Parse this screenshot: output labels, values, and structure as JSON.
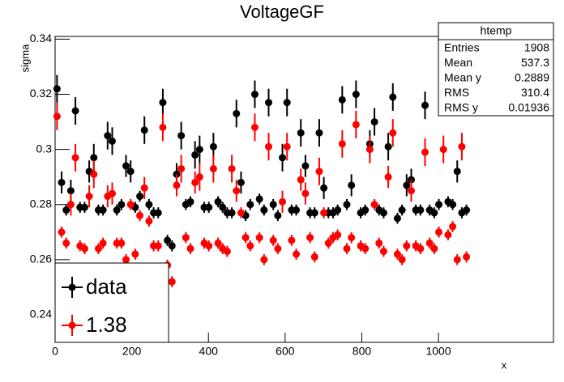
{
  "chart_data": {
    "type": "scatter",
    "title": "VoltageGF",
    "x_label": "x",
    "y_label": "sigma",
    "xlim": [
      0,
      1300
    ],
    "ylim": [
      0.23,
      0.341
    ],
    "xticks": [
      0,
      200,
      400,
      600,
      800,
      1000
    ],
    "yticks": [
      0.24,
      0.26,
      0.28,
      0.3,
      0.32,
      0.34
    ],
    "x": [
      5,
      17,
      29,
      41,
      53,
      65,
      77,
      89,
      101,
      113,
      125,
      137,
      149,
      161,
      173,
      185,
      197,
      209,
      221,
      233,
      245,
      257,
      269,
      281,
      293,
      305,
      317,
      329,
      341,
      353,
      365,
      377,
      389,
      401,
      413,
      425,
      437,
      449,
      461,
      473,
      485,
      497,
      509,
      521,
      533,
      545,
      557,
      569,
      581,
      593,
      605,
      617,
      629,
      641,
      653,
      665,
      677,
      689,
      701,
      713,
      725,
      737,
      749,
      761,
      773,
      785,
      797,
      809,
      821,
      833,
      845,
      857,
      869,
      881,
      893,
      905,
      917,
      929,
      941,
      953,
      965,
      977,
      989,
      1001,
      1013,
      1025,
      1037,
      1049,
      1061,
      1073
    ],
    "series": [
      {
        "name": "data",
        "color": "#000000",
        "values": [
          0.322,
          0.288,
          0.278,
          0.285,
          0.314,
          0.279,
          0.279,
          0.292,
          0.297,
          0.278,
          0.278,
          0.305,
          0.303,
          0.278,
          0.28,
          0.294,
          0.292,
          0.279,
          0.283,
          0.307,
          0.28,
          0.277,
          0.277,
          0.317,
          0.267,
          0.265,
          0.291,
          0.305,
          0.28,
          0.281,
          0.298,
          0.3,
          0.279,
          0.279,
          0.301,
          0.281,
          0.279,
          0.277,
          0.277,
          0.313,
          0.288,
          0.276,
          0.28,
          0.32,
          0.282,
          0.278,
          0.317,
          0.28,
          0.276,
          0.297,
          0.317,
          0.278,
          0.278,
          0.306,
          0.294,
          0.277,
          0.277,
          0.306,
          0.286,
          0.277,
          0.277,
          0.278,
          0.318,
          0.28,
          0.287,
          0.32,
          0.277,
          0.278,
          0.302,
          0.31,
          0.278,
          0.277,
          0.301,
          0.319,
          0.275,
          0.278,
          0.287,
          0.289,
          0.278,
          0.278,
          0.316,
          0.278,
          0.277,
          0.28,
          0.322,
          0.281,
          0.28,
          0.292,
          0.277,
          0.278
        ],
        "errors": [
          0.005,
          0.004,
          0.002,
          0.004,
          0.005,
          0.002,
          0.002,
          0.004,
          0.005,
          0.002,
          0.002,
          0.005,
          0.005,
          0.002,
          0.002,
          0.004,
          0.004,
          0.002,
          0.002,
          0.005,
          0.002,
          0.002,
          0.002,
          0.005,
          0.002,
          0.002,
          0.004,
          0.005,
          0.002,
          0.002,
          0.005,
          0.005,
          0.002,
          0.002,
          0.005,
          0.002,
          0.002,
          0.002,
          0.002,
          0.005,
          0.004,
          0.002,
          0.002,
          0.005,
          0.002,
          0.002,
          0.005,
          0.002,
          0.002,
          0.005,
          0.005,
          0.002,
          0.002,
          0.005,
          0.004,
          0.002,
          0.002,
          0.005,
          0.004,
          0.002,
          0.002,
          0.002,
          0.005,
          0.002,
          0.004,
          0.005,
          0.002,
          0.002,
          0.005,
          0.005,
          0.002,
          0.002,
          0.005,
          0.005,
          0.002,
          0.002,
          0.004,
          0.004,
          0.002,
          0.002,
          0.005,
          0.002,
          0.002,
          0.002,
          0.005,
          0.002,
          0.002,
          0.004,
          0.002,
          0.002
        ]
      },
      {
        "name": "1.38",
        "color": "#ff0000",
        "values": [
          0.312,
          0.27,
          0.266,
          0.28,
          0.297,
          0.265,
          0.264,
          0.283,
          0.291,
          0.264,
          0.266,
          0.283,
          0.284,
          0.266,
          0.266,
          0.26,
          0.28,
          0.262,
          0.276,
          0.286,
          0.274,
          0.265,
          0.265,
          0.308,
          0.258,
          0.252,
          0.287,
          0.293,
          0.268,
          0.264,
          0.288,
          0.29,
          0.266,
          0.265,
          0.293,
          0.266,
          0.264,
          0.263,
          0.293,
          0.285,
          0.277,
          0.268,
          0.265,
          0.308,
          0.268,
          0.26,
          0.301,
          0.267,
          0.264,
          0.281,
          0.301,
          0.267,
          0.262,
          0.289,
          0.284,
          0.268,
          0.261,
          0.292,
          0.277,
          0.266,
          0.268,
          0.269,
          0.302,
          0.264,
          0.268,
          0.309,
          0.265,
          0.264,
          0.3,
          0.28,
          0.266,
          0.263,
          0.29,
          0.306,
          0.262,
          0.26,
          0.265,
          0.285,
          0.265,
          0.264,
          0.299,
          0.266,
          0.264,
          0.27,
          0.3,
          0.269,
          0.272,
          0.26,
          0.301,
          0.261
        ],
        "errors": [
          0.005,
          0.002,
          0.002,
          0.004,
          0.005,
          0.002,
          0.002,
          0.004,
          0.005,
          0.002,
          0.002,
          0.004,
          0.004,
          0.002,
          0.002,
          0.002,
          0.002,
          0.002,
          0.002,
          0.004,
          0.002,
          0.002,
          0.002,
          0.005,
          0.002,
          0.002,
          0.004,
          0.005,
          0.002,
          0.002,
          0.004,
          0.005,
          0.002,
          0.002,
          0.005,
          0.002,
          0.002,
          0.002,
          0.005,
          0.004,
          0.002,
          0.002,
          0.002,
          0.005,
          0.002,
          0.002,
          0.005,
          0.002,
          0.002,
          0.004,
          0.005,
          0.002,
          0.002,
          0.004,
          0.004,
          0.002,
          0.002,
          0.005,
          0.002,
          0.002,
          0.002,
          0.002,
          0.005,
          0.002,
          0.002,
          0.005,
          0.002,
          0.002,
          0.005,
          0.002,
          0.002,
          0.002,
          0.004,
          0.005,
          0.002,
          0.002,
          0.002,
          0.004,
          0.002,
          0.002,
          0.005,
          0.002,
          0.002,
          0.002,
          0.005,
          0.002,
          0.002,
          0.002,
          0.005,
          0.002
        ]
      }
    ],
    "stats": {
      "title": "htemp",
      "entries": [
        {
          "label": "Entries",
          "value": 1908
        },
        {
          "label": "Mean",
          "value": 537.3
        },
        {
          "label": "Mean y",
          "value": 0.2889
        },
        {
          "label": "RMS",
          "value": 310.4
        },
        {
          "label": "RMS y",
          "value": 0.01936
        }
      ]
    }
  }
}
